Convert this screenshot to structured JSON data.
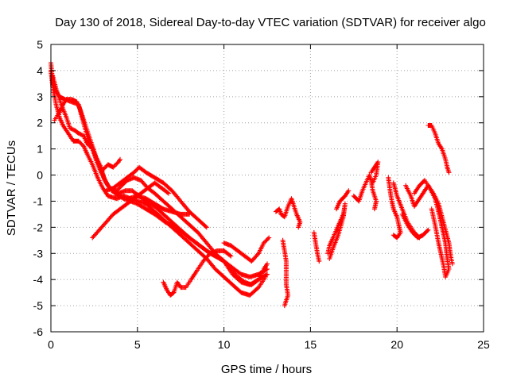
{
  "chart_data": {
    "type": "scatter",
    "title": "Day 130 of 2018, Sidereal Day-to-day VTEC variation (SDTVAR) for receiver algo",
    "xlabel": "GPS time / hours",
    "ylabel": "SDTVAR / TECUs",
    "xlim": [
      0,
      25
    ],
    "ylim": [
      -6,
      5
    ],
    "xticks": [
      "0",
      "5",
      "10",
      "15",
      "20",
      "25"
    ],
    "yticks": [
      "-6",
      "-5",
      "-4",
      "-3",
      "-2",
      "-1",
      "0",
      "1",
      "2",
      "3",
      "4",
      "5"
    ],
    "grid": true,
    "marker": "+",
    "series_color": "#ff0000",
    "tracks": [
      [
        [
          0.0,
          4.3
        ],
        [
          0.1,
          3.6
        ],
        [
          0.3,
          3.2
        ],
        [
          0.5,
          3.0
        ],
        [
          0.8,
          2.9
        ],
        [
          1.2,
          2.8
        ],
        [
          1.6,
          2.7
        ],
        [
          1.8,
          2.2
        ],
        [
          2.1,
          1.5
        ],
        [
          2.4,
          1.0
        ],
        [
          2.7,
          0.5
        ],
        [
          3.0,
          0.0
        ],
        [
          3.3,
          -0.4
        ],
        [
          3.7,
          -0.7
        ],
        [
          4.2,
          -0.9
        ],
        [
          4.6,
          -1.0
        ],
        [
          5.0,
          -1.1
        ],
        [
          5.5,
          -1.3
        ],
        [
          6.0,
          -1.5
        ],
        [
          6.6,
          -1.8
        ],
        [
          7.2,
          -2.0
        ],
        [
          7.8,
          -2.3
        ],
        [
          8.4,
          -2.6
        ],
        [
          9.0,
          -2.9
        ],
        [
          9.5,
          -3.1
        ],
        [
          10.0,
          -3.3
        ],
        [
          10.4,
          -3.6
        ],
        [
          10.8,
          -3.9
        ],
        [
          11.2,
          -4.1
        ],
        [
          11.6,
          -4.2
        ],
        [
          12.0,
          -4.0
        ],
        [
          12.3,
          -3.6
        ],
        [
          12.5,
          -3.4
        ]
      ],
      [
        [
          0.0,
          4.0
        ],
        [
          0.1,
          3.4
        ],
        [
          0.3,
          2.7
        ],
        [
          0.5,
          2.2
        ],
        [
          0.7,
          1.9
        ],
        [
          1.0,
          1.6
        ],
        [
          1.3,
          1.3
        ],
        [
          1.6,
          1.3
        ],
        [
          1.9,
          1.1
        ],
        [
          2.1,
          0.8
        ],
        [
          2.4,
          0.4
        ],
        [
          2.7,
          -0.1
        ],
        [
          3.0,
          -0.5
        ],
        [
          3.3,
          -0.8
        ],
        [
          3.8,
          -0.9
        ],
        [
          4.2,
          -0.8
        ],
        [
          4.6,
          -0.9
        ],
        [
          5.0,
          -1.0
        ],
        [
          5.5,
          -1.1
        ],
        [
          6.0,
          -1.4
        ],
        [
          6.5,
          -1.7
        ],
        [
          7.0,
          -2.0
        ],
        [
          7.5,
          -2.3
        ],
        [
          8.0,
          -2.6
        ],
        [
          8.5,
          -2.9
        ],
        [
          9.0,
          -3.2
        ],
        [
          9.5,
          -3.6
        ],
        [
          10.0,
          -3.9
        ],
        [
          10.5,
          -4.2
        ],
        [
          11.0,
          -4.5
        ],
        [
          11.5,
          -4.6
        ],
        [
          12.0,
          -4.3
        ],
        [
          12.4,
          -3.9
        ]
      ],
      [
        [
          0.1,
          3.8
        ],
        [
          0.3,
          3.3
        ],
        [
          0.6,
          2.7
        ],
        [
          0.9,
          2.2
        ],
        [
          1.1,
          1.8
        ],
        [
          1.4,
          1.7
        ],
        [
          1.6,
          1.6
        ],
        [
          1.9,
          1.5
        ],
        [
          2.1,
          1.2
        ],
        [
          2.4,
          1.0
        ],
        [
          2.6,
          0.6
        ],
        [
          2.9,
          0.1
        ],
        [
          3.2,
          -0.3
        ],
        [
          3.5,
          -0.6
        ],
        [
          3.9,
          -0.7
        ],
        [
          4.3,
          -0.6
        ],
        [
          4.7,
          -0.6
        ],
        [
          5.1,
          -0.8
        ],
        [
          5.5,
          -1.0
        ],
        [
          6.0,
          -1.2
        ],
        [
          6.5,
          -1.5
        ],
        [
          7.0,
          -1.8
        ],
        [
          7.5,
          -2.1
        ],
        [
          8.0,
          -2.4
        ],
        [
          8.6,
          -2.7
        ],
        [
          9.2,
          -3.0
        ],
        [
          9.8,
          -3.2
        ],
        [
          10.4,
          -3.5
        ],
        [
          11.0,
          -3.8
        ],
        [
          11.5,
          -3.9
        ],
        [
          12.0,
          -3.8
        ],
        [
          12.5,
          -3.6
        ]
      ],
      [
        [
          0.2,
          2.1
        ],
        [
          0.5,
          2.4
        ],
        [
          0.7,
          2.7
        ],
        [
          0.9,
          2.9
        ],
        [
          1.2,
          2.9
        ],
        [
          1.5,
          2.8
        ],
        [
          1.7,
          2.5
        ],
        [
          2.0,
          1.9
        ],
        [
          2.3,
          1.3
        ],
        [
          2.6,
          0.7
        ],
        [
          2.9,
          0.3
        ],
        [
          3.1,
          -0.2
        ],
        [
          3.4,
          -0.5
        ],
        [
          3.8,
          -0.6
        ],
        [
          4.1,
          -0.4
        ],
        [
          4.4,
          -0.2
        ],
        [
          4.8,
          -0.1
        ],
        [
          5.2,
          -0.2
        ],
        [
          5.6,
          -0.5
        ],
        [
          6.0,
          -0.7
        ],
        [
          6.5,
          -1.0
        ],
        [
          7.0,
          -1.3
        ],
        [
          7.5,
          -1.6
        ],
        [
          8.0,
          -1.9
        ],
        [
          8.5,
          -2.2
        ],
        [
          9.0,
          -2.6
        ],
        [
          9.5,
          -3.0
        ],
        [
          10.0,
          -3.3
        ],
        [
          10.5,
          -3.8
        ],
        [
          11.0,
          -4.1
        ],
        [
          11.5,
          -4.2
        ],
        [
          12.0,
          -4.0
        ],
        [
          12.5,
          -3.8
        ]
      ],
      [
        [
          3.0,
          0.2
        ],
        [
          3.3,
          0.4
        ],
        [
          3.6,
          0.3
        ],
        [
          3.9,
          0.5
        ],
        [
          4.0,
          0.6
        ]
      ],
      [
        [
          2.4,
          -2.4
        ],
        [
          2.8,
          -2.1
        ],
        [
          3.2,
          -1.8
        ],
        [
          3.6,
          -1.5
        ],
        [
          4.0,
          -1.3
        ],
        [
          4.4,
          -1.1
        ],
        [
          4.8,
          -0.9
        ],
        [
          5.2,
          -0.7
        ],
        [
          5.6,
          -0.5
        ],
        [
          6.0,
          -0.3
        ],
        [
          6.4,
          -0.5
        ],
        [
          6.8,
          -0.7
        ]
      ],
      [
        [
          3.2,
          -0.6
        ],
        [
          3.6,
          -0.5
        ],
        [
          4.0,
          -0.3
        ],
        [
          4.4,
          -0.1
        ],
        [
          4.8,
          0.1
        ],
        [
          5.1,
          0.3
        ],
        [
          5.5,
          0.1
        ],
        [
          6.0,
          -0.1
        ],
        [
          6.5,
          -0.3
        ],
        [
          7.0,
          -0.6
        ],
        [
          7.5,
          -1.0
        ],
        [
          8.0,
          -1.4
        ],
        [
          8.5,
          -1.7
        ],
        [
          9.0,
          -2.0
        ]
      ],
      [
        [
          4.5,
          -0.9
        ],
        [
          5.0,
          -0.8
        ],
        [
          5.5,
          -0.9
        ],
        [
          6.0,
          -1.1
        ],
        [
          6.5,
          -1.3
        ],
        [
          7.0,
          -1.4
        ],
        [
          7.5,
          -1.5
        ],
        [
          8.0,
          -1.5
        ]
      ],
      [
        [
          6.5,
          -4.1
        ],
        [
          6.7,
          -4.4
        ],
        [
          6.9,
          -4.6
        ],
        [
          7.1,
          -4.5
        ],
        [
          7.3,
          -4.1
        ],
        [
          7.5,
          -4.3
        ],
        [
          7.8,
          -4.3
        ],
        [
          8.1,
          -4.0
        ],
        [
          8.4,
          -3.7
        ],
        [
          8.8,
          -3.3
        ],
        [
          9.2,
          -3.0
        ],
        [
          9.6,
          -2.9
        ],
        [
          10.0,
          -2.9
        ],
        [
          10.4,
          -3.1
        ]
      ],
      [
        [
          10.0,
          -2.6
        ],
        [
          10.4,
          -2.7
        ],
        [
          10.8,
          -2.9
        ],
        [
          11.2,
          -3.1
        ],
        [
          11.6,
          -3.3
        ],
        [
          12.0,
          -3.0
        ],
        [
          12.3,
          -2.6
        ],
        [
          12.6,
          -2.4
        ]
      ],
      [
        [
          13.0,
          -1.4
        ],
        [
          13.2,
          -1.3
        ],
        [
          13.3,
          -1.5
        ],
        [
          13.5,
          -1.6
        ],
        [
          13.7,
          -1.2
        ],
        [
          13.9,
          -0.9
        ],
        [
          14.0,
          -1.1
        ],
        [
          14.2,
          -1.5
        ],
        [
          14.4,
          -1.8
        ],
        [
          14.3,
          -2.0
        ]
      ],
      [
        [
          13.4,
          -2.5
        ],
        [
          13.5,
          -2.9
        ],
        [
          13.6,
          -3.3
        ],
        [
          13.6,
          -4.2
        ],
        [
          13.7,
          -4.6
        ],
        [
          13.5,
          -5.0
        ]
      ],
      [
        [
          15.2,
          -2.2
        ],
        [
          15.3,
          -2.6
        ],
        [
          15.4,
          -3.0
        ],
        [
          15.5,
          -3.3
        ]
      ],
      [
        [
          16.0,
          -3.0
        ],
        [
          16.1,
          -2.7
        ],
        [
          16.3,
          -2.4
        ],
        [
          16.5,
          -2.1
        ],
        [
          16.7,
          -1.8
        ],
        [
          16.9,
          -1.5
        ],
        [
          17.0,
          -1.1
        ],
        [
          16.9,
          -1.6
        ],
        [
          16.6,
          -2.3
        ],
        [
          16.3,
          -2.8
        ],
        [
          16.1,
          -3.2
        ]
      ],
      [
        [
          16.5,
          -1.3
        ],
        [
          16.7,
          -1.0
        ],
        [
          17.0,
          -0.8
        ],
        [
          17.2,
          -0.6
        ]
      ],
      [
        [
          17.5,
          -0.8
        ],
        [
          17.8,
          -1.0
        ],
        [
          18.0,
          -0.6
        ],
        [
          18.2,
          -0.3
        ],
        [
          18.4,
          0.0
        ],
        [
          18.5,
          -0.2
        ],
        [
          18.6,
          -0.6
        ],
        [
          18.8,
          -1.0
        ],
        [
          18.7,
          -1.3
        ]
      ],
      [
        [
          18.5,
          0.1
        ],
        [
          18.7,
          0.3
        ],
        [
          18.9,
          0.5
        ],
        [
          18.8,
          0.0
        ],
        [
          18.6,
          -0.3
        ]
      ],
      [
        [
          19.5,
          -0.1
        ],
        [
          19.6,
          -0.6
        ],
        [
          19.7,
          -1.0
        ],
        [
          19.8,
          -1.3
        ],
        [
          20.0,
          -1.6
        ],
        [
          20.1,
          -1.9
        ],
        [
          20.2,
          -2.2
        ],
        [
          20.0,
          -2.4
        ],
        [
          19.8,
          -2.3
        ]
      ],
      [
        [
          19.8,
          -0.3
        ],
        [
          20.0,
          -0.8
        ],
        [
          20.3,
          -1.3
        ],
        [
          20.6,
          -1.8
        ],
        [
          21.0,
          -2.2
        ],
        [
          21.3,
          -2.4
        ]
      ],
      [
        [
          20.3,
          -1.5
        ],
        [
          20.6,
          -1.9
        ],
        [
          20.9,
          -2.2
        ],
        [
          21.2,
          -2.4
        ],
        [
          21.5,
          -2.3
        ],
        [
          21.8,
          -2.1
        ]
      ],
      [
        [
          20.5,
          -0.4
        ],
        [
          20.8,
          -0.8
        ],
        [
          21.0,
          -1.2
        ],
        [
          21.2,
          -1.0
        ],
        [
          21.5,
          -0.7
        ],
        [
          21.8,
          -0.4
        ],
        [
          22.1,
          -0.7
        ],
        [
          22.4,
          -1.1
        ],
        [
          22.6,
          -1.6
        ],
        [
          22.8,
          -2.1
        ],
        [
          23.0,
          -2.6
        ],
        [
          23.1,
          -3.1
        ],
        [
          23.2,
          -3.4
        ]
      ],
      [
        [
          21.0,
          -0.7
        ],
        [
          21.3,
          -0.4
        ],
        [
          21.6,
          -0.2
        ],
        [
          21.9,
          -0.5
        ],
        [
          22.2,
          -0.9
        ],
        [
          22.4,
          -1.4
        ],
        [
          22.6,
          -2.0
        ],
        [
          22.8,
          -2.6
        ],
        [
          22.9,
          -3.2
        ],
        [
          23.0,
          -3.6
        ],
        [
          22.8,
          -3.9
        ]
      ],
      [
        [
          21.8,
          1.9
        ],
        [
          22.0,
          1.9
        ],
        [
          22.2,
          1.6
        ],
        [
          22.4,
          1.2
        ],
        [
          22.6,
          1.0
        ],
        [
          22.8,
          0.6
        ],
        [
          22.9,
          0.3
        ],
        [
          23.0,
          0.1
        ]
      ],
      [
        [
          22.0,
          -1.3
        ],
        [
          22.2,
          -1.9
        ],
        [
          22.4,
          -2.6
        ],
        [
          22.6,
          -3.2
        ],
        [
          22.7,
          -3.5
        ],
        [
          22.8,
          -3.9
        ]
      ]
    ]
  }
}
